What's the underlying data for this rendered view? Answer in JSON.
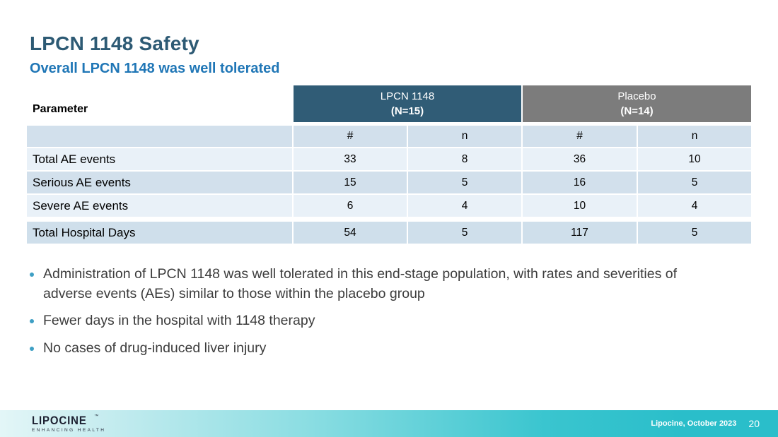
{
  "slide": {
    "title": "LPCN 1148 Safety",
    "subtitle": "Overall LPCN 1148 was well tolerated",
    "page_number": "20"
  },
  "table": {
    "row_header_label": "Parameter",
    "column_groups": [
      {
        "name": "LPCN 1148",
        "n_label": "(N=15)"
      },
      {
        "name": "Placebo",
        "n_label": "(N=14)"
      }
    ],
    "sub_headers": [
      "#",
      "n",
      "#",
      "n"
    ],
    "rows": [
      {
        "label": "Total AE events",
        "values": [
          "33",
          "8",
          "36",
          "10"
        ]
      },
      {
        "label": "Serious AE events",
        "values": [
          "15",
          "5",
          "16",
          "5"
        ]
      },
      {
        "label": "Severe AE events",
        "values": [
          "6",
          "4",
          "10",
          "4"
        ]
      },
      {
        "label": "Total Hospital Days",
        "values": [
          "54",
          "5",
          "117",
          "5"
        ]
      }
    ]
  },
  "bullets": [
    {
      "text": "Administration of LPCN 1148 was well tolerated in this end-stage population, with rates and severities of adverse events (AEs) similar to those within the placebo group"
    },
    {
      "text": "Fewer days in the hospital with 1148 therapy"
    },
    {
      "text": "No cases of drug-induced liver injury"
    }
  ],
  "footer": {
    "logo_text": "LIPOCINE",
    "logo_trademark": "™",
    "logo_tagline": "ENHANCING HEALTH",
    "credit": "Lipocine, October 2023"
  },
  "colors": {
    "title": "#2D5A74",
    "subtitle": "#1F76B6",
    "table_header_primary": "#305C76",
    "table_header_secondary": "#7C7C7C",
    "table_row_light": "#E9F1F8",
    "table_row_dark": "#D2E0EC",
    "footer_teal": "#2ABECA",
    "bullet_dot": "#3E9FC4"
  }
}
